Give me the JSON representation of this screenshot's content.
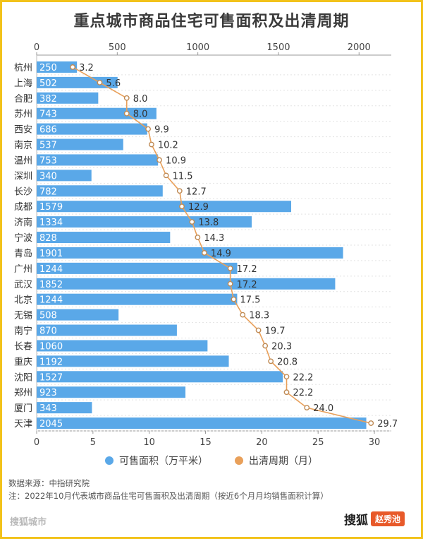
{
  "title": "重点城市商品住宅可售面积及出清周期",
  "chart_data": {
    "type": "bar",
    "orientation": "horizontal",
    "categories": [
      "杭州",
      "上海",
      "合肥",
      "苏州",
      "西安",
      "南京",
      "温州",
      "深圳",
      "长沙",
      "成都",
      "济南",
      "宁波",
      "青岛",
      "广州",
      "武汉",
      "北京",
      "无锡",
      "南宁",
      "长春",
      "重庆",
      "沈阳",
      "郑州",
      "厦门",
      "天津"
    ],
    "series": [
      {
        "name": "可售面积（万平米）",
        "type": "bar",
        "axis": "top",
        "color": "#5aa8e8",
        "values": [
          250,
          502,
          382,
          743,
          686,
          537,
          753,
          340,
          782,
          1579,
          1334,
          828,
          1901,
          1244,
          1852,
          1244,
          508,
          870,
          1060,
          1192,
          1527,
          923,
          343,
          2045
        ]
      },
      {
        "name": "出清周期（月）",
        "type": "line",
        "axis": "bottom",
        "color": "#e9a05a",
        "values": [
          3.2,
          5.6,
          8.0,
          8.0,
          9.9,
          10.2,
          10.9,
          11.5,
          12.7,
          12.9,
          13.8,
          14.3,
          14.9,
          17.2,
          17.2,
          17.5,
          18.3,
          19.7,
          20.3,
          20.8,
          22.2,
          22.2,
          24.0,
          29.7
        ],
        "labels": [
          "3.2",
          "5.6",
          "8.0",
          "8.0",
          "9.9",
          "10.2",
          "10.9",
          "11.5",
          "12.7",
          "12.9",
          "13.8",
          "14.3",
          "14.9",
          "17.2",
          "17.2",
          "17.5",
          "18.3",
          "19.7",
          "20.3",
          "20.8",
          "22.2",
          "22.2",
          "24.0",
          "29.7"
        ]
      }
    ],
    "top_axis": {
      "range": [
        0,
        2200
      ],
      "ticks": [
        0,
        500,
        1000,
        1500,
        2000
      ]
    },
    "bottom_axis": {
      "range": [
        0,
        31.5
      ],
      "ticks": [
        0,
        5,
        10,
        15,
        20,
        25,
        30
      ]
    },
    "legend_position": "bottom-center",
    "grid": "horizontal-dashed"
  },
  "legend": [
    {
      "label": "可售面积（万平米）",
      "color": "#5aa8e8"
    },
    {
      "label": "出清周期（月）",
      "color": "#e9a05a"
    }
  ],
  "source": "数据来源：中指研究院",
  "note": "注：2022年10月代表城市商品住宅可售面积及出清周期（按近6个月月均销售面积计算）",
  "brand": "搜狐城市",
  "watermark": {
    "text": "搜狐",
    "badge": "赵秀池"
  }
}
